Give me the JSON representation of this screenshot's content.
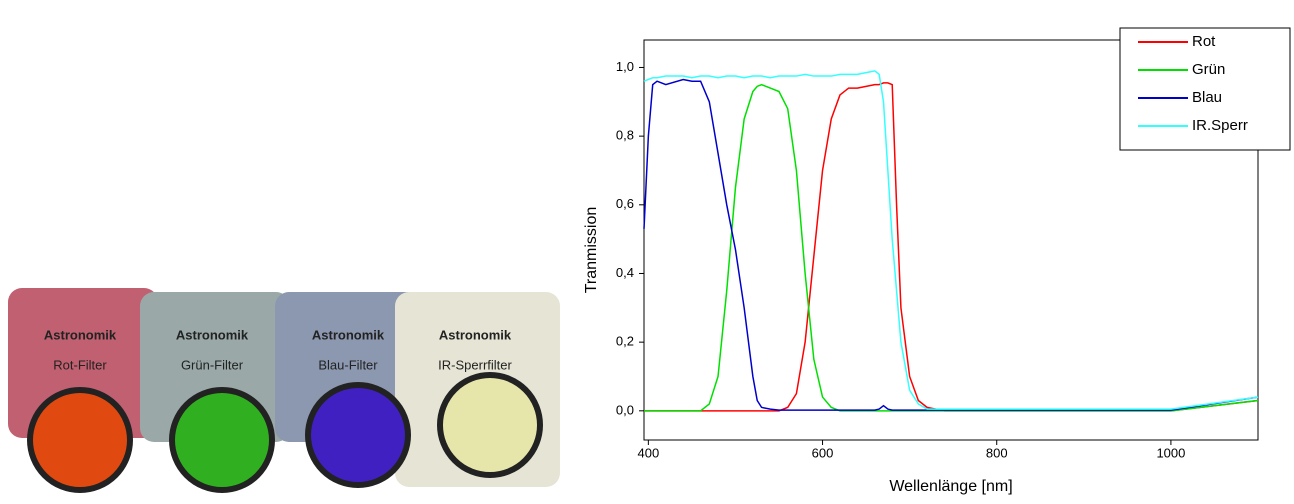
{
  "photo": {
    "brand": "Astronomik",
    "labels": [
      "Rot-Filter",
      "Grün-Filter",
      "Blau-Filter",
      "IR-Sperrfilter"
    ]
  },
  "chart_data": {
    "type": "line",
    "x_label": "Wellenlänge [nm]",
    "y_label": "Tranmission",
    "x": [
      395,
      400,
      405,
      410,
      420,
      440,
      450,
      460,
      470,
      480,
      490,
      500,
      510,
      520,
      525,
      530,
      540,
      550,
      560,
      570,
      580,
      590,
      600,
      610,
      620,
      630,
      640,
      650,
      660,
      665,
      670,
      675,
      680,
      685,
      690,
      700,
      710,
      720,
      740,
      800,
      900,
      1000,
      1100
    ],
    "series": [
      {
        "name": "Rot",
        "color": "#ff0000",
        "values": [
          0,
          0,
          0,
          0,
          0,
          0,
          0,
          0,
          0,
          0,
          0,
          0,
          0,
          0,
          0,
          0,
          0,
          0,
          0.01,
          0.05,
          0.2,
          0.45,
          0.7,
          0.85,
          0.92,
          0.94,
          0.94,
          0.945,
          0.95,
          0.95,
          0.955,
          0.955,
          0.95,
          0.6,
          0.3,
          0.1,
          0.03,
          0.01,
          0,
          0,
          0,
          0,
          0.03
        ]
      },
      {
        "name": "Grün",
        "color": "#00e000",
        "values": [
          0,
          0,
          0,
          0,
          0,
          0,
          0,
          0,
          0.02,
          0.1,
          0.35,
          0.65,
          0.85,
          0.93,
          0.945,
          0.95,
          0.94,
          0.93,
          0.88,
          0.7,
          0.4,
          0.15,
          0.04,
          0.01,
          0,
          0,
          0,
          0,
          0,
          0,
          0,
          0,
          0,
          0,
          0,
          0,
          0,
          0,
          0,
          0,
          0,
          0,
          0.03
        ]
      },
      {
        "name": "Blau",
        "color": "#0000cc",
        "values": [
          0.53,
          0.8,
          0.95,
          0.96,
          0.95,
          0.965,
          0.96,
          0.96,
          0.9,
          0.75,
          0.6,
          0.47,
          0.3,
          0.1,
          0.03,
          0.01,
          0.005,
          0.002,
          0.002,
          0.002,
          0.002,
          0.002,
          0.002,
          0.002,
          0.002,
          0.002,
          0.002,
          0.002,
          0.002,
          0.005,
          0.015,
          0.005,
          0.002,
          0.002,
          0.002,
          0.002,
          0.002,
          0.002,
          0.002,
          0.002,
          0.002,
          0.002,
          0.04
        ]
      },
      {
        "name": "IR.Sperr",
        "color": "#33ffff",
        "values": [
          0.96,
          0.965,
          0.97,
          0.97,
          0.975,
          0.975,
          0.97,
          0.975,
          0.975,
          0.97,
          0.975,
          0.975,
          0.97,
          0.975,
          0.975,
          0.975,
          0.97,
          0.975,
          0.975,
          0.975,
          0.98,
          0.975,
          0.975,
          0.975,
          0.98,
          0.98,
          0.98,
          0.985,
          0.99,
          0.98,
          0.9,
          0.7,
          0.5,
          0.35,
          0.2,
          0.06,
          0.02,
          0.005,
          0.005,
          0.005,
          0.005,
          0.005,
          0.04
        ]
      }
    ],
    "xlim": [
      395,
      1100
    ],
    "ylim": [
      -0.085,
      1.08
    ],
    "xticks": [
      400,
      600,
      800,
      1000
    ],
    "yticks": [
      {
        "value": 0,
        "label": "0,0"
      },
      {
        "value": 0.2,
        "label": "0,2"
      },
      {
        "value": 0.4,
        "label": "0,4"
      },
      {
        "value": 0.6,
        "label": "0,6"
      },
      {
        "value": 0.8,
        "label": "0,8"
      },
      {
        "value": 1,
        "label": "1,0"
      }
    ],
    "legend": "upper right"
  }
}
